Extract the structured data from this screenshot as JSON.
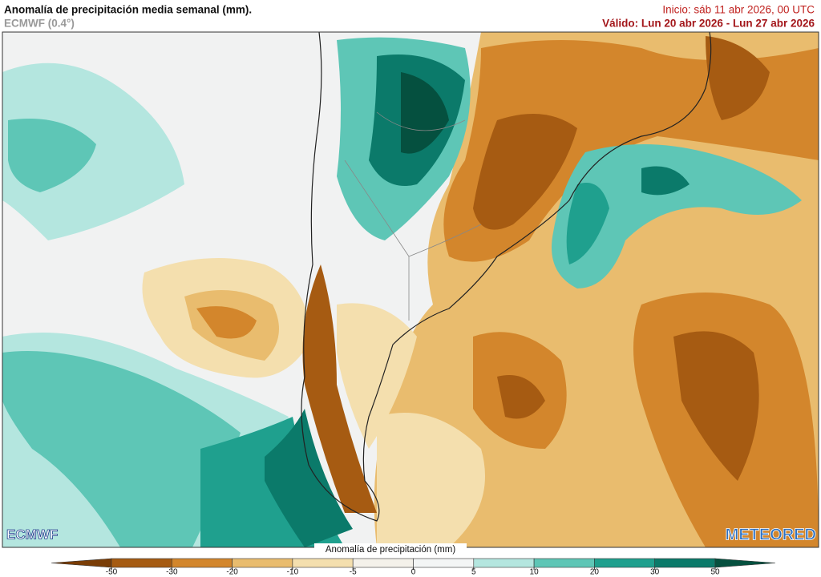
{
  "header": {
    "title": "Anomalía de precipitación media semanal (mm).",
    "model": "ECMWF (0.4°)",
    "init": "Inicio:  sáb 11 abr 2026, 00 UTC",
    "valid": "Válido: Lun 20 abr 2026 - Lun 27 abr 2026"
  },
  "logos": {
    "left": "ECMWF",
    "right": "METEORED"
  },
  "colorbar": {
    "label": "Anomalía de precipitación (mm)",
    "ticks": [
      -50,
      -30,
      -20,
      -10,
      -5,
      0,
      5,
      10,
      20,
      30,
      50
    ],
    "colors": [
      "#7a3d06",
      "#a65b12",
      "#d3862c",
      "#e9bc6e",
      "#f4dfae",
      "#f4f1ea",
      "#f3f5f5",
      "#b4e6df",
      "#5ec6b6",
      "#1fa08e",
      "#0b7a6a",
      "#05503f"
    ]
  }
}
